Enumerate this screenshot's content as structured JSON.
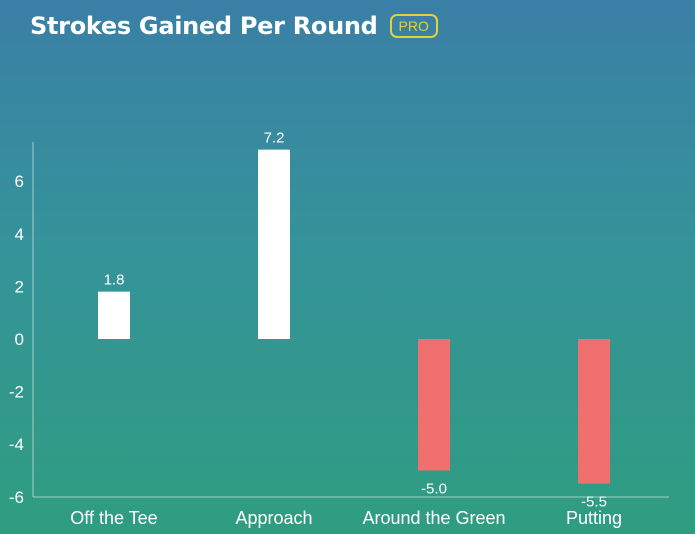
{
  "header": {
    "title": "Strokes Gained Per Round",
    "badge": "PRO"
  },
  "chart_data": {
    "type": "bar",
    "categories": [
      "Off the Tee",
      "Approach",
      "Around the Green",
      "Putting"
    ],
    "values": [
      1.8,
      7.2,
      -5.0,
      -5.5
    ],
    "value_labels": [
      "1.8",
      "7.2",
      "-5.0",
      "-5.5"
    ],
    "yticks": [
      6,
      4,
      2,
      0,
      -2,
      -4,
      -6
    ],
    "ylim": [
      -6,
      7.5
    ],
    "grid": false,
    "colors": {
      "positive": "#ffffff",
      "negative": "#f07070"
    }
  }
}
